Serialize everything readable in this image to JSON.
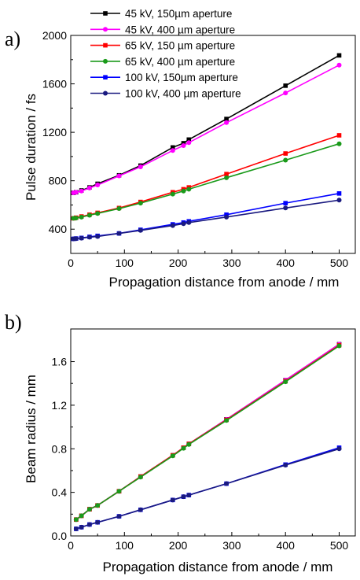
{
  "chart_data": [
    {
      "type": "line",
      "panel_label": "a)",
      "xlabel": "Propagation distance from anode / mm",
      "ylabel": "Pulse duration / fs",
      "xlim": [
        0,
        530
      ],
      "ylim": [
        200,
        2000
      ],
      "xticks": [
        0,
        100,
        200,
        300,
        400,
        500
      ],
      "yticks": [
        400,
        800,
        1200,
        1600,
        2000
      ],
      "xtick_labels": [
        "0",
        "100",
        "200",
        "300",
        "400",
        "500"
      ],
      "ytick_labels": [
        "400",
        "800",
        "1200",
        "1600",
        "2000"
      ],
      "legend_position": "top-left",
      "x": [
        5,
        10,
        20,
        35,
        50,
        90,
        130,
        190,
        210,
        220,
        290,
        400,
        500
      ],
      "series": [
        {
          "name": "45 kV, 150µm aperture",
          "color": "#000000",
          "marker": "square",
          "values": [
            700,
            705,
            720,
            745,
            775,
            845,
            925,
            1075,
            1110,
            1140,
            1310,
            1585,
            1835
          ]
        },
        {
          "name": "45 kV, 400 µm aperture",
          "color": "#ff00ff",
          "marker": "circle",
          "values": [
            700,
            705,
            715,
            740,
            765,
            840,
            915,
            1050,
            1090,
            1115,
            1280,
            1525,
            1755
          ]
        },
        {
          "name": "65 kV, 150 µm aperture",
          "color": "#ff0000",
          "marker": "square",
          "values": [
            490,
            495,
            505,
            520,
            535,
            575,
            625,
            705,
            730,
            745,
            855,
            1025,
            1175
          ]
        },
        {
          "name": "65 kV, 400 µm aperture",
          "color": "#1a9a1a",
          "marker": "circle",
          "values": [
            490,
            492,
            500,
            515,
            530,
            570,
            615,
            690,
            715,
            730,
            825,
            970,
            1105
          ]
        },
        {
          "name": "100 kV, 150µm aperture",
          "color": "#0000ff",
          "marker": "square",
          "values": [
            320,
            323,
            328,
            337,
            345,
            365,
            395,
            440,
            455,
            465,
            520,
            615,
            695
          ]
        },
        {
          "name": "100 kV, 400 µm aperture",
          "color": "#1a1a80",
          "marker": "circle",
          "values": [
            320,
            322,
            326,
            334,
            340,
            365,
            390,
            430,
            445,
            455,
            500,
            575,
            640
          ]
        }
      ]
    },
    {
      "type": "line",
      "panel_label": "b)",
      "xlabel": "Propagation distance from anode / mm",
      "ylabel": "Beam radius / mm",
      "xlim": [
        0,
        530
      ],
      "ylim": [
        0,
        1.9
      ],
      "xticks": [
        0,
        100,
        200,
        300,
        400,
        500
      ],
      "yticks": [
        0.0,
        0.4,
        0.8,
        1.2,
        1.6
      ],
      "xtick_labels": [
        "0",
        "100",
        "200",
        "300",
        "400",
        "500"
      ],
      "ytick_labels": [
        "0.0",
        "0.4",
        "0.8",
        "1.2",
        "1.6"
      ],
      "x": [
        10,
        20,
        35,
        50,
        90,
        130,
        190,
        210,
        220,
        290,
        400,
        500
      ],
      "series": [
        {
          "color": "#000000",
          "marker": "square",
          "values": [
            0.15,
            0.185,
            0.245,
            0.28,
            0.41,
            0.545,
            0.74,
            0.81,
            0.845,
            1.07,
            1.43,
            1.76
          ]
        },
        {
          "color": "#ff00ff",
          "marker": "circle",
          "values": [
            0.15,
            0.185,
            0.245,
            0.28,
            0.41,
            0.545,
            0.74,
            0.81,
            0.845,
            1.07,
            1.43,
            1.76
          ]
        },
        {
          "color": "#ff0000",
          "marker": "square",
          "values": [
            0.15,
            0.185,
            0.245,
            0.28,
            0.41,
            0.545,
            0.74,
            0.81,
            0.845,
            1.065,
            1.42,
            1.75
          ]
        },
        {
          "color": "#1a9a1a",
          "marker": "circle",
          "values": [
            0.15,
            0.185,
            0.245,
            0.28,
            0.41,
            0.54,
            0.735,
            0.805,
            0.84,
            1.06,
            1.415,
            1.745
          ]
        },
        {
          "color": "#0000ff",
          "marker": "square",
          "values": [
            0.065,
            0.08,
            0.105,
            0.125,
            0.18,
            0.24,
            0.33,
            0.36,
            0.375,
            0.48,
            0.655,
            0.81
          ]
        },
        {
          "color": "#1a1a80",
          "marker": "circle",
          "values": [
            0.065,
            0.08,
            0.105,
            0.125,
            0.18,
            0.24,
            0.33,
            0.36,
            0.375,
            0.48,
            0.65,
            0.8
          ]
        }
      ]
    }
  ]
}
